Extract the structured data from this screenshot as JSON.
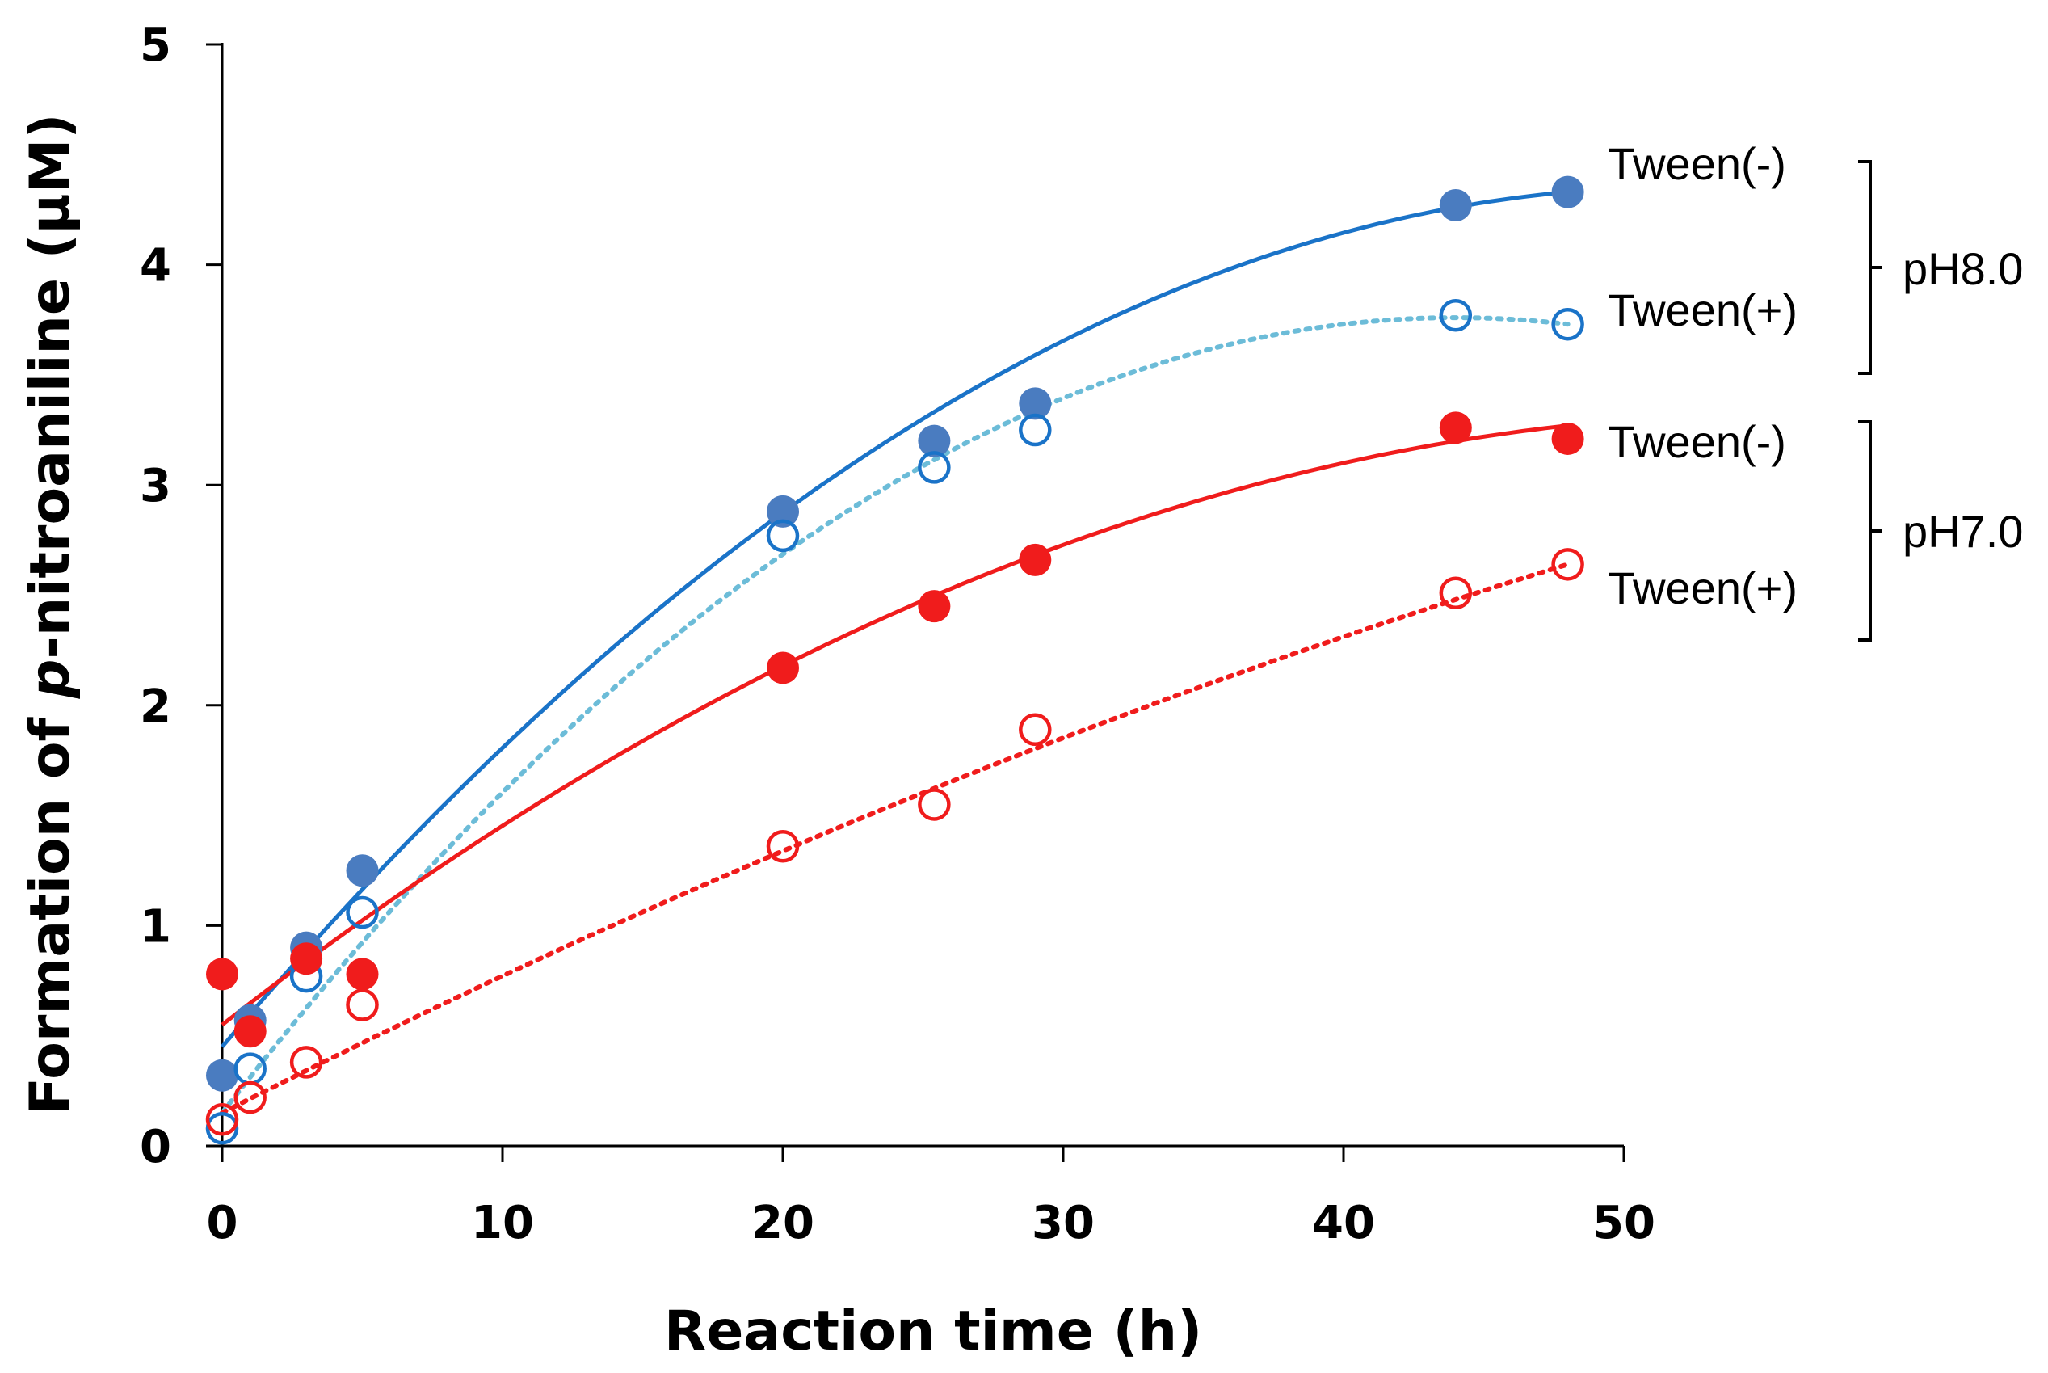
{
  "chart_data": {
    "type": "scatter",
    "title": "",
    "xlabel": "Reaction time (h)",
    "ylabel_parts": [
      "Formation of ",
      "p",
      "-nitroaniline (µM)"
    ],
    "xlim": [
      0,
      50
    ],
    "ylim": [
      0,
      5
    ],
    "xticks": [
      0,
      10,
      20,
      30,
      40,
      50
    ],
    "yticks": [
      0,
      1,
      2,
      3,
      4,
      5
    ],
    "grid": false,
    "series": [
      {
        "name": "Tween(-)",
        "group": "pH8.0",
        "marker": "filled",
        "line": "solid",
        "color": "#4a7cc0",
        "line_color": "#1a73c8",
        "x": [
          0,
          1,
          3,
          5,
          20,
          25.4,
          29,
          44,
          48
        ],
        "y": [
          0.32,
          0.57,
          0.9,
          1.25,
          2.88,
          3.2,
          3.37,
          4.27,
          4.33
        ],
        "fit": {
          "x0": 0,
          "x1": 48,
          "y0": 0.45,
          "y1": 4.33,
          "peak_x": 52,
          "style": "quadratic"
        }
      },
      {
        "name": "Tween(+)",
        "group": "pH8.0",
        "marker": "open",
        "line": "dotted",
        "color": "#1a73c8",
        "line_color": "#6cbcd8",
        "x": [
          0,
          1,
          3,
          5,
          20,
          25.4,
          29,
          44,
          48
        ],
        "y": [
          0.08,
          0.35,
          0.77,
          1.06,
          2.77,
          3.08,
          3.25,
          3.77,
          3.73
        ],
        "fit": {
          "x0": 0,
          "x1": 48,
          "y0": 0.15,
          "y1": 3.73,
          "peak_x": 44,
          "style": "quadratic"
        }
      },
      {
        "name": "Tween(-)",
        "group": "pH7.0",
        "marker": "filled",
        "line": "solid",
        "color": "#f01c1c",
        "line_color": "#f01c1c",
        "x": [
          0,
          1,
          3,
          5,
          20,
          25.4,
          29,
          44,
          48
        ],
        "y": [
          0.78,
          0.52,
          0.85,
          0.78,
          2.17,
          2.45,
          2.66,
          3.26,
          3.21
        ],
        "fit": {
          "x0": 0,
          "x1": 48,
          "y0": 0.55,
          "y1": 3.27,
          "peak_x": 56,
          "style": "quadratic"
        }
      },
      {
        "name": "Tween(+)",
        "group": "pH7.0",
        "marker": "open",
        "line": "dotted",
        "color": "#f01c1c",
        "line_color": "#f01c1c",
        "x": [
          0,
          1,
          3,
          5,
          20,
          25.4,
          29,
          44,
          48
        ],
        "y": [
          0.12,
          0.22,
          0.38,
          0.64,
          1.36,
          1.55,
          1.89,
          2.51,
          2.64
        ],
        "fit": {
          "x0": 0,
          "x1": 48,
          "y0": 0.15,
          "y1": 2.64,
          "peak_x": 120,
          "style": "quadratic"
        }
      }
    ],
    "legend": {
      "placement": "right",
      "entries": [
        {
          "label": "Tween(-)",
          "series": 0
        },
        {
          "label": "Tween(+)",
          "series": 1
        },
        {
          "label": "Tween(-)",
          "series": 2
        },
        {
          "label": "Tween(+)",
          "series": 3
        }
      ],
      "groups": [
        {
          "label": "pH8.0",
          "series": [
            0,
            1
          ]
        },
        {
          "label": "pH7.0",
          "series": [
            2,
            3
          ]
        }
      ]
    }
  }
}
